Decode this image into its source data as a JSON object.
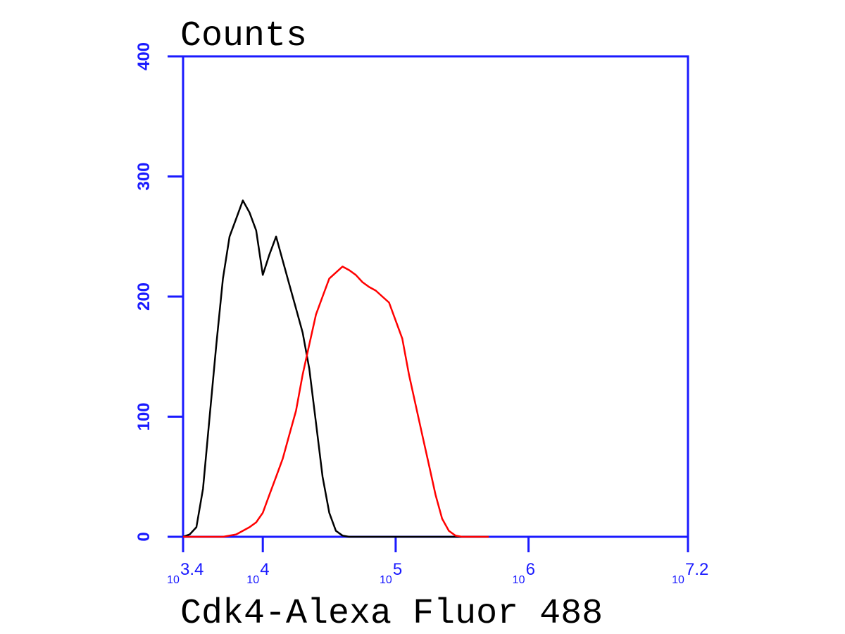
{
  "chart_data": {
    "type": "line",
    "title": "Counts",
    "x_label": "Cdk4-Alexa Fluor 488",
    "x_scale": "log",
    "x": [
      2512,
      2818,
      3162,
      3548,
      3981,
      4467,
      5012,
      5623,
      6310,
      7079,
      7943,
      8913,
      10000,
      11220,
      12589,
      14125,
      15849,
      17783,
      19953,
      22387,
      25119,
      28184,
      31623,
      35481,
      39811,
      44668,
      50119,
      56234,
      63096,
      70795,
      79433,
      89125,
      100000,
      112202,
      125893,
      141254,
      158489,
      177828,
      199526,
      223872,
      251189,
      281838,
      316228,
      354813,
      398107,
      446684,
      501187
    ],
    "series": [
      {
        "color": "#000000",
        "values": [
          0,
          2,
          8,
          40,
          100,
          160,
          215,
          250,
          265,
          280,
          270,
          255,
          218,
          235,
          250,
          230,
          210,
          190,
          170,
          140,
          95,
          50,
          20,
          5,
          1,
          0,
          0,
          0,
          0,
          0,
          0,
          0,
          0,
          0,
          0,
          0,
          0,
          0,
          0,
          0,
          0,
          0,
          0,
          0,
          0,
          0,
          0
        ]
      },
      {
        "color": "#ff0000",
        "values": [
          0,
          0,
          0,
          0,
          0,
          0,
          0,
          1,
          2,
          5,
          8,
          12,
          20,
          35,
          50,
          65,
          85,
          105,
          135,
          160,
          185,
          200,
          215,
          220,
          225,
          222,
          218,
          212,
          208,
          205,
          200,
          195,
          180,
          165,
          135,
          110,
          85,
          60,
          35,
          15,
          5,
          1,
          0,
          0,
          0,
          0,
          0
        ]
      }
    ],
    "xlim": [
      2512,
      15848932
    ],
    "xticks": [
      {
        "value": 2512,
        "label": "10",
        "exponent": "3.4"
      },
      {
        "value": 10000,
        "label": "10",
        "exponent": "4"
      },
      {
        "value": 100000,
        "label": "10",
        "exponent": "5"
      },
      {
        "value": 1000000,
        "label": "10",
        "exponent": "6"
      },
      {
        "value": 15848932,
        "label": "10",
        "exponent": "7.2"
      }
    ],
    "ylim": [
      0,
      400
    ],
    "yticks": [
      0,
      100,
      200,
      300,
      400
    ],
    "axis_color": "#1a1aff"
  }
}
